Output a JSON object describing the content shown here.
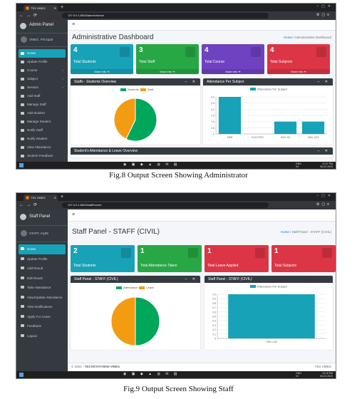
{
  "figures": [
    {
      "caption": "Fig.8  Output Screen Showing Administrator",
      "browser": {
        "tab_title": "TSV VMEG",
        "url": "127.0.0.1:8000/admin/home/"
      },
      "sidebar": {
        "brand": "Admin Panel",
        "user": "VMEG, Principal",
        "items": [
          {
            "label": "Home",
            "active": true,
            "icon": "home-icon"
          },
          {
            "label": "Update Profile",
            "icon": "profile-icon"
          },
          {
            "label": "Course",
            "chevron": "‹",
            "icon": "course-icon"
          },
          {
            "label": "Subject",
            "chevron": "‹",
            "icon": "subject-icon"
          },
          {
            "label": "Session",
            "chevron": "‹",
            "icon": "session-icon"
          },
          {
            "label": "Add Staff",
            "icon": "add-user-icon"
          },
          {
            "label": "Manage Staff",
            "icon": "users-icon"
          },
          {
            "label": "Add Student",
            "icon": "add-user-icon"
          },
          {
            "label": "Manage Student",
            "icon": "users-icon"
          },
          {
            "label": "Notify Staff",
            "icon": "bell-icon"
          },
          {
            "label": "Notify Student",
            "icon": "bell-icon"
          },
          {
            "label": "View Attendance",
            "icon": "calendar-icon"
          },
          {
            "label": "Student Feedback",
            "icon": "feedback-icon"
          },
          {
            "label": "Staff Feedback",
            "icon": "feedback-icon"
          }
        ]
      },
      "page_title": "Administrative Dashboard",
      "breadcrumb": {
        "home": "Home",
        "current": "Administrative Dashboard"
      },
      "boxes": [
        {
          "number": "4",
          "label": "Total Students",
          "more": "More info ➔",
          "color": "#17a2b8"
        },
        {
          "number": "3",
          "label": "Total Staff",
          "more": "More info ➔",
          "color": "#28a745"
        },
        {
          "number": "4",
          "label": "Total Course",
          "more": "More info ➔",
          "color": "#6f42c1"
        },
        {
          "number": "4",
          "label": "Total Subjects",
          "more": "More info ➔",
          "color": "#dc3545"
        }
      ],
      "cards": [
        {
          "title": "Staffs - Students Overview",
          "tools": "–  ✕"
        },
        {
          "title": "Attendance Per Subject",
          "tools": "–  ✕"
        },
        {
          "title": "Student's Attendance & Leave Overview",
          "tools": "–  ✕"
        }
      ],
      "taskbar": {
        "lang": "ENG\nIN",
        "time": "10:37 PM",
        "date": "06-02-2023"
      }
    },
    {
      "caption": "Fig.9 Output Screen Showing Staff",
      "browser": {
        "tab_title": "TSV VMEG",
        "url": "127.0.0.1:8000/staff/home/"
      },
      "sidebar": {
        "brand": "Staff Panel",
        "user": "STAFF, my06",
        "items": [
          {
            "label": "Home",
            "active": true,
            "icon": "home-icon"
          },
          {
            "label": "Update Profile",
            "icon": "profile-icon"
          },
          {
            "label": "Add Result",
            "icon": "result-icon"
          },
          {
            "label": "Edit Result",
            "icon": "edit-icon"
          },
          {
            "label": "Take Attendance",
            "icon": "calendar-icon"
          },
          {
            "label": "View/Update Attendance",
            "icon": "list-icon"
          },
          {
            "label": "View Notifications",
            "icon": "bell-icon"
          },
          {
            "label": "Apply For Leave",
            "icon": "check-icon"
          },
          {
            "label": "Feedback",
            "icon": "feedback-icon"
          },
          {
            "label": "Logout",
            "icon": "power-icon"
          }
        ]
      },
      "page_title": "Staff Panel - STAFF (CIVIL)",
      "breadcrumb": {
        "home": "Home",
        "current": "Staff Panel - STAFF (CIVIL)"
      },
      "boxes": [
        {
          "number": "2",
          "label": "Total Students",
          "color": "#17a2b8"
        },
        {
          "number": "1",
          "label": "Total Attendance Taken",
          "color": "#28a745"
        },
        {
          "number": "1",
          "label": "Total Leave Applied",
          "color": "#dc3545"
        },
        {
          "number": "1",
          "label": "Total Subjects",
          "color": "#dc3545"
        }
      ],
      "cards": [
        {
          "title": "Staff Panel - STAFF (CIVIL)",
          "tools": "–  ✕"
        },
        {
          "title": "Staff Panel - STAFF (CIVIL)",
          "tools": ""
        }
      ],
      "footer": {
        "left_prefix": "© 2023 -",
        "left_brand": "TECHSTATVIEW-VMEG",
        "right": "TSV VMEG"
      },
      "taskbar": {
        "lang": "ENG\nIN",
        "time": "10:18 PM",
        "date": "06-02-2023"
      }
    }
  ],
  "chart_data": [
    {
      "type": "pie",
      "title": "Staffs - Students Overview",
      "categories": [
        "Students",
        "Staff"
      ],
      "values": [
        4,
        3
      ],
      "colors": [
        "#00a65a",
        "#f39c12"
      ]
    },
    {
      "type": "bar",
      "title": "Attendance Per Subject",
      "series": [
        {
          "name": "Attendance Per Subject",
          "values": [
            3,
            0,
            1,
            1
          ],
          "color": "#17a2b8"
        }
      ],
      "categories": [
        "MEB",
        "ELECTRO",
        "HWL-C5",
        "HWL-C53"
      ],
      "ylim": [
        0,
        3
      ],
      "yticks": [
        "0",
        "0.5",
        "1.0",
        "1.5",
        "2.0",
        "2.5",
        "3.0"
      ]
    },
    {
      "type": "pie",
      "title": "Staff Panel - STAFF (CIVIL)",
      "categories": [
        "Attendance",
        "Leave"
      ],
      "values": [
        1,
        1
      ],
      "colors": [
        "#00a65a",
        "#f39c12"
      ]
    },
    {
      "type": "bar",
      "title": "Staff Panel - STAFF (CIVIL)",
      "series": [
        {
          "name": "Attendance Per Subject",
          "values": [
            1
          ],
          "color": "#17a2b8"
        }
      ],
      "categories": [
        "HWL-C53"
      ],
      "ylim": [
        0,
        1
      ],
      "yticks": [
        "0",
        "0.1",
        "0.2",
        "0.3",
        "0.4",
        "0.5",
        "0.6",
        "0.7",
        "0.8",
        "0.9",
        "1.0"
      ]
    }
  ]
}
